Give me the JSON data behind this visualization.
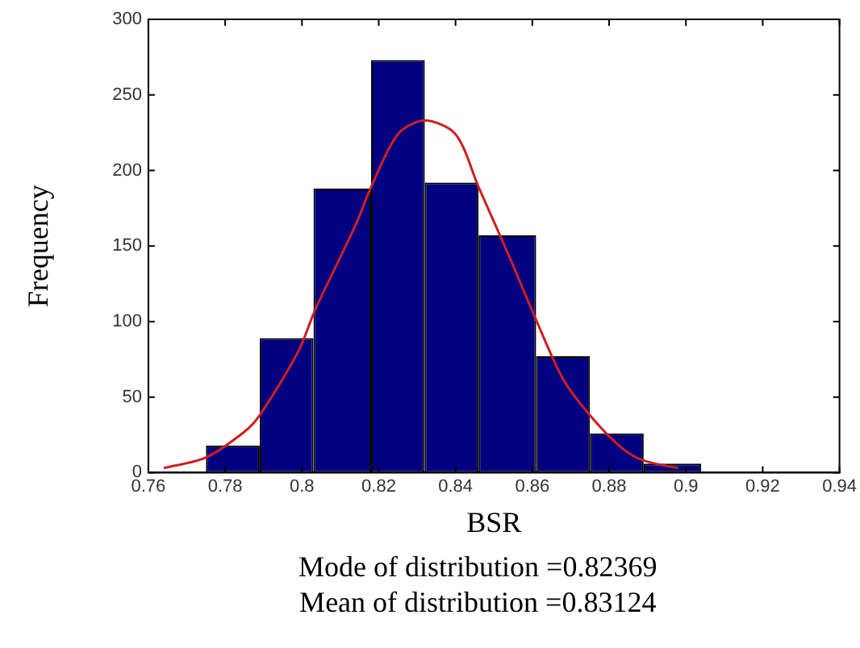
{
  "chart_data": {
    "type": "histogram",
    "xlabel": "BSR",
    "ylabel": "Frequency",
    "annotations": [
      "Mode of distribution =0.82369",
      "Mean of distribution =0.83124"
    ],
    "xlim": [
      0.76,
      0.94
    ],
    "xticks": [
      0.76,
      0.78,
      0.8,
      0.82,
      0.84,
      0.86,
      0.88,
      0.9,
      0.92,
      0.94
    ],
    "ylim": [
      0,
      300
    ],
    "yticks": [
      0,
      50,
      100,
      150,
      200,
      250,
      300
    ],
    "grid": false,
    "legend": false,
    "series": [
      {
        "type": "histogram",
        "color": "#000080",
        "bins": [
          0.775,
          0.789,
          0.803,
          0.818,
          0.832,
          0.846,
          0.861,
          0.875,
          0.889,
          0.904
        ],
        "values": [
          18,
          89,
          188,
          273,
          192,
          157,
          77,
          26,
          6
        ]
      },
      {
        "type": "line",
        "color": "#cc2020",
        "x": [
          0.764,
          0.775,
          0.785,
          0.789,
          0.799,
          0.8035,
          0.814,
          0.818,
          0.825,
          0.832,
          0.84,
          0.846,
          0.854,
          0.861,
          0.868,
          0.875,
          0.883,
          0.889,
          0.898
        ],
        "values": [
          3,
          10,
          27,
          38,
          80,
          108,
          164,
          189,
          224,
          233,
          224,
          189,
          143,
          101,
          62,
          38,
          17,
          8,
          3
        ]
      }
    ]
  }
}
